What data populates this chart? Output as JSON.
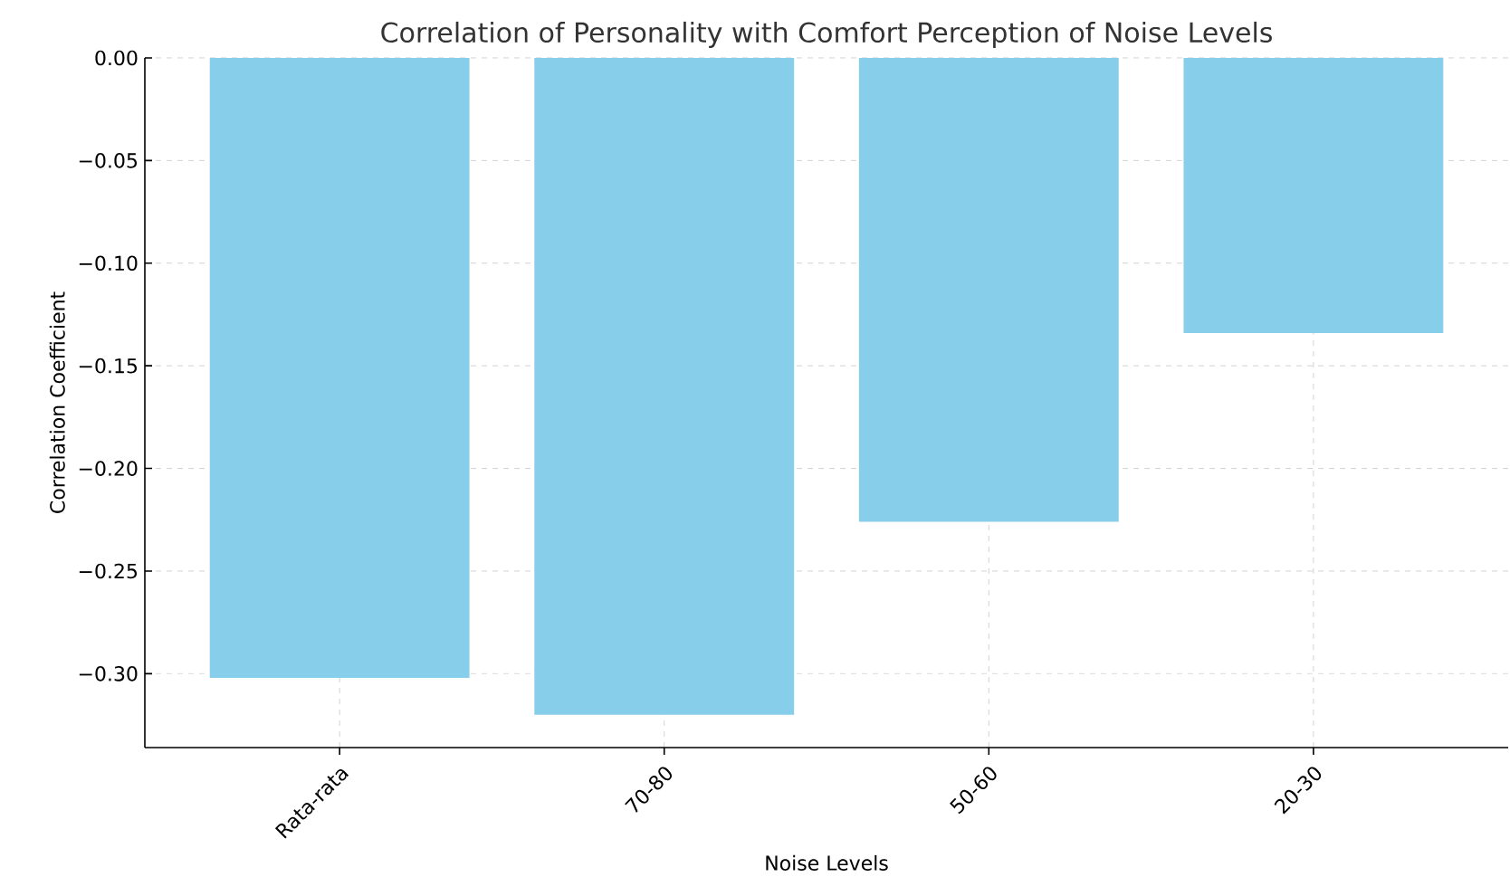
{
  "chart_data": {
    "type": "bar",
    "title": "Correlation of Personality with Comfort Perception of Noise Levels",
    "xlabel": "Noise Levels",
    "ylabel": "Correlation Coefficient",
    "categories": [
      "Rata-rata",
      "70-80",
      "50-60",
      "20-30"
    ],
    "values": [
      -0.302,
      -0.32,
      -0.226,
      -0.134
    ],
    "color": "#87ceeb",
    "ylim": [
      -0.336,
      0
    ],
    "yticks": [
      {
        "value": -0.3,
        "label": "−0.30"
      },
      {
        "value": -0.25,
        "label": "−0.25"
      },
      {
        "value": -0.2,
        "label": "−0.20"
      },
      {
        "value": -0.15,
        "label": "−0.15"
      },
      {
        "value": -0.1,
        "label": "−0.10"
      },
      {
        "value": -0.05,
        "label": "−0.05"
      },
      {
        "value": 0.0,
        "label": "0.00"
      }
    ],
    "grid": true
  }
}
